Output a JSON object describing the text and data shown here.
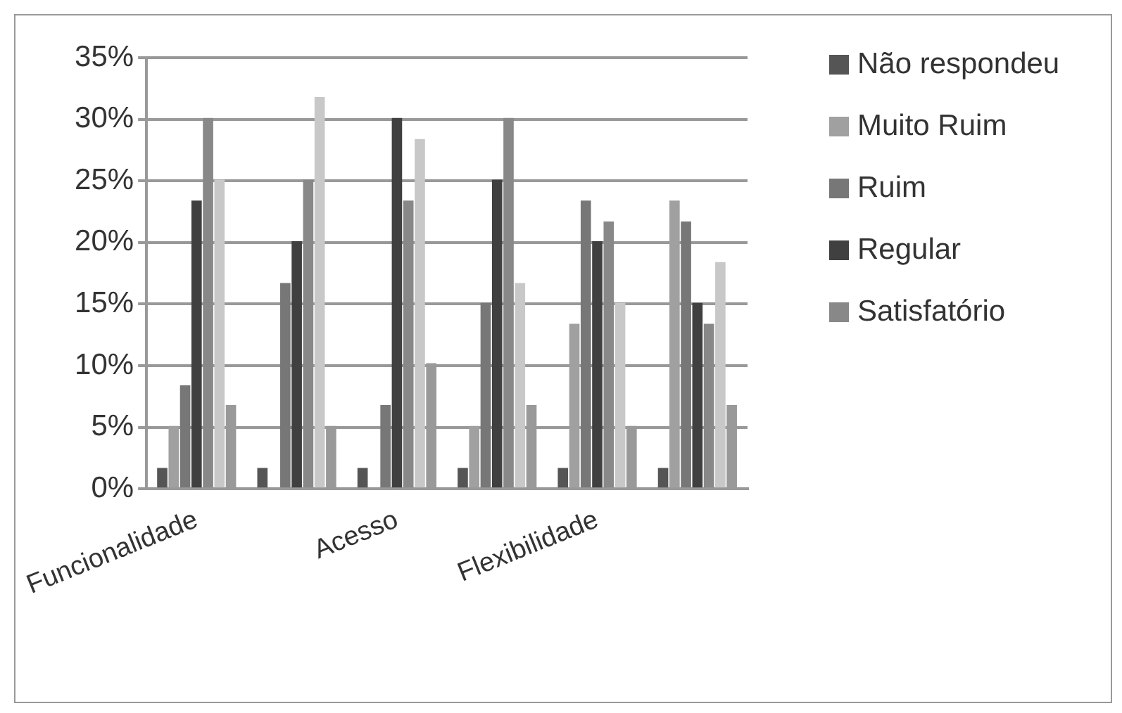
{
  "chart_data": {
    "type": "bar",
    "categories": [
      "Funcionalidade",
      null,
      "Acesso",
      null,
      "Flexibilidade",
      null
    ],
    "series": [
      {
        "name": "Não respondeu",
        "color": "#555555",
        "values": [
          1.7,
          1.7,
          1.7,
          1.7,
          1.7,
          1.7
        ]
      },
      {
        "name": "Muito Ruim",
        "color": "#a0a0a0",
        "values": [
          5.1,
          0,
          0,
          5.1,
          13.4,
          23.4
        ]
      },
      {
        "name": "Ruim",
        "color": "#777777",
        "values": [
          8.4,
          16.7,
          6.8,
          15.1,
          23.4,
          21.7
        ]
      },
      {
        "name": "Regular",
        "color": "#404040",
        "values": [
          23.4,
          20.1,
          30.1,
          25.1,
          20.1,
          15.1
        ]
      },
      {
        "name": "Satisfatório",
        "color": "#888888",
        "values": [
          30.1,
          25.1,
          23.4,
          30.1,
          21.7,
          13.4
        ]
      },
      {
        "color": "#c8c8c8",
        "values": [
          25.1,
          31.8,
          28.4,
          16.7,
          15.1,
          18.4
        ]
      },
      {
        "color": "#999999",
        "values": [
          6.8,
          5.1,
          10.2,
          6.8,
          5.1,
          6.8
        ]
      }
    ],
    "ylim": [
      0,
      35
    ],
    "yticks": [
      {
        "value": 0,
        "label": "0%"
      },
      {
        "value": 5,
        "label": "5%"
      },
      {
        "value": 10,
        "label": "10%"
      },
      {
        "value": 15,
        "label": "15%"
      },
      {
        "value": 20,
        "label": "20%"
      },
      {
        "value": 25,
        "label": "25%"
      },
      {
        "value": 30,
        "label": "30%"
      },
      {
        "value": 35,
        "label": "35%"
      }
    ],
    "grid": "y",
    "legend": "right"
  }
}
